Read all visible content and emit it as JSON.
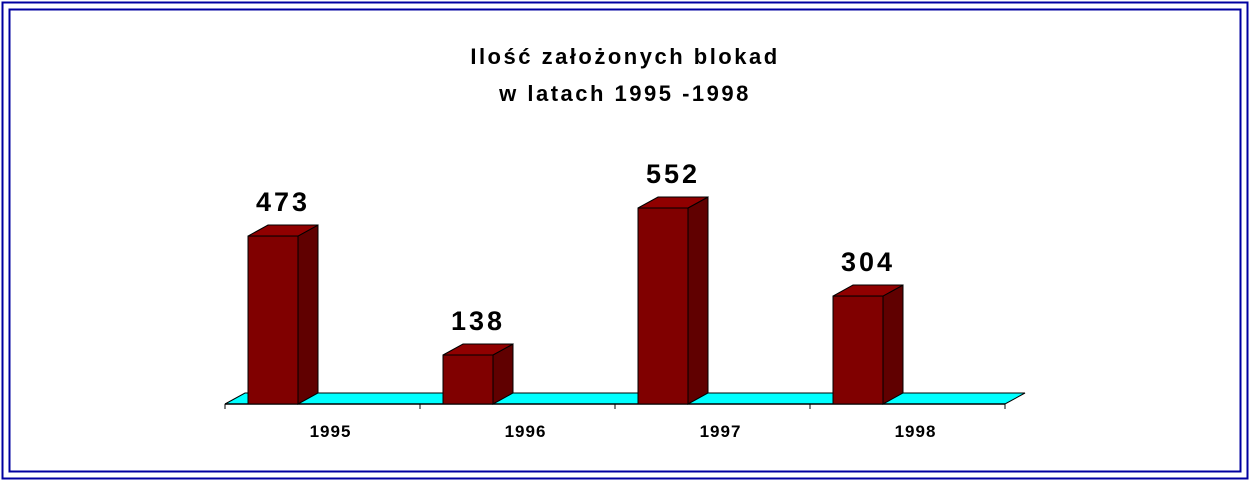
{
  "chart_data": {
    "type": "bar3d",
    "title": [
      "Ilość założonych blokad",
      "w latach 1995 -1998"
    ],
    "categories": [
      "1995",
      "1996",
      "1997",
      "1998"
    ],
    "values": [
      473,
      138,
      552,
      304
    ],
    "color": "#800000",
    "floor_color": "#00ffff"
  }
}
